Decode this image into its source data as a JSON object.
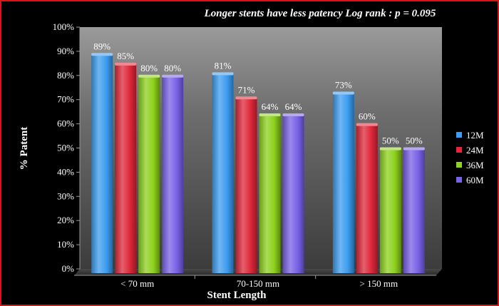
{
  "chart_data": {
    "type": "bar",
    "title": "Longer stents have less patency Log rank : p = 0.095",
    "xlabel": "Stent Length",
    "ylabel": "% Patent",
    "categories": [
      "< 70 mm",
      "70-150 mm",
      "> 150 mm"
    ],
    "ylim": [
      0,
      100
    ],
    "yticks": [
      "0%",
      "10%",
      "20%",
      "30%",
      "40%",
      "50%",
      "60%",
      "70%",
      "80%",
      "90%",
      "100%"
    ],
    "grid": false,
    "legend_position": "right",
    "series": [
      {
        "name": "12M",
        "color": "#3d9df0",
        "values": [
          89,
          81,
          73
        ],
        "labels": [
          "89%",
          "81%",
          "73%"
        ]
      },
      {
        "name": "24M",
        "color": "#e0283a",
        "values": [
          85,
          71,
          60
        ],
        "labels": [
          "85%",
          "71%",
          "60%"
        ]
      },
      {
        "name": "36M",
        "color": "#8ed21c",
        "values": [
          80,
          64,
          50
        ],
        "labels": [
          "80%",
          "64%",
          "50%"
        ]
      },
      {
        "name": "60M",
        "color": "#7a62e8",
        "values": [
          80,
          64,
          50
        ],
        "labels": [
          "80%",
          "64%",
          "50%"
        ]
      }
    ]
  }
}
